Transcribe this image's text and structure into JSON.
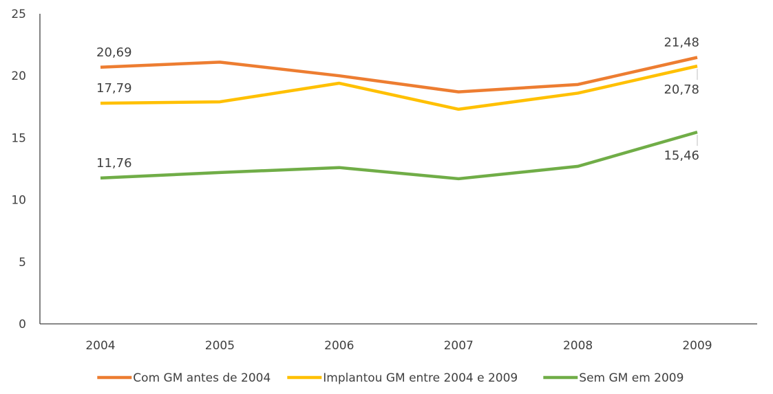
{
  "chart_data": {
    "type": "line",
    "title": "",
    "xlabel": "",
    "ylabel": "",
    "categories": [
      "2004",
      "2005",
      "2006",
      "2007",
      "2008",
      "2009"
    ],
    "ylim": [
      0,
      25
    ],
    "yticks": [
      0,
      5,
      10,
      15,
      20,
      25
    ],
    "grid": false,
    "legend_position": "bottom",
    "series": [
      {
        "name": "Com GM antes de 2004",
        "color": "#ED7D31",
        "values": [
          20.69,
          21.1,
          20.0,
          18.7,
          19.3,
          21.48
        ],
        "labels": [
          {
            "index": 0,
            "text": "20,69",
            "position": "above"
          },
          {
            "index": 5,
            "text": "21,48",
            "position": "above"
          }
        ]
      },
      {
        "name": "Implantou GM entre 2004 e 2009",
        "color": "#FFC000",
        "values": [
          17.79,
          17.9,
          19.4,
          17.3,
          18.6,
          20.78
        ],
        "labels": [
          {
            "index": 0,
            "text": "17,79",
            "position": "above"
          },
          {
            "index": 5,
            "text": "20,78",
            "position": "below"
          }
        ]
      },
      {
        "name": "Sem GM em 2009",
        "color": "#70AD47",
        "values": [
          11.76,
          12.2,
          12.6,
          11.7,
          12.7,
          15.46
        ],
        "labels": [
          {
            "index": 0,
            "text": "11,76",
            "position": "above"
          },
          {
            "index": 5,
            "text": "15,46",
            "position": "below"
          }
        ]
      }
    ]
  }
}
